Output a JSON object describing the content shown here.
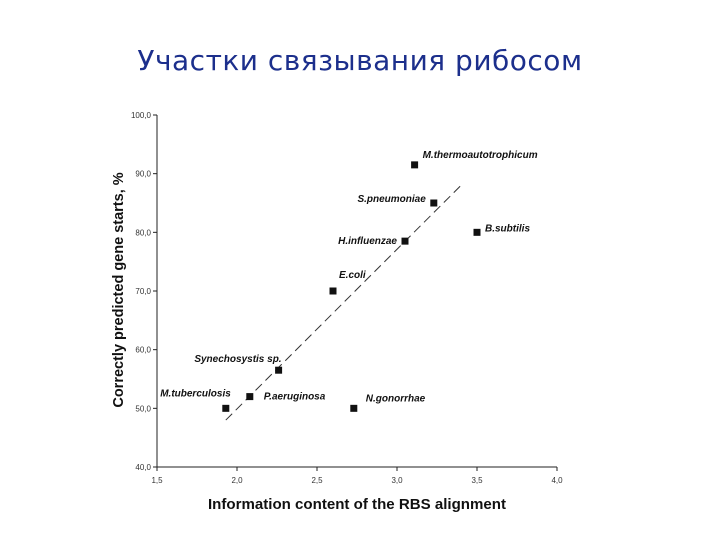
{
  "slide": {
    "title": "Участки связывания рибосом"
  },
  "chart_data": {
    "type": "scatter",
    "title": "",
    "xlabel": "Information content of the RBS alignment",
    "ylabel": "Correctly predicted gene starts, %",
    "xlim": [
      1.5,
      4.0
    ],
    "ylim": [
      40.0,
      100.0
    ],
    "xticks": [
      "1,5",
      "2,0",
      "2,5",
      "3,0",
      "3,5",
      "4,0"
    ],
    "yticks": [
      "40,0",
      "50,0",
      "60,0",
      "70,0",
      "80,0",
      "90,0",
      "100,0"
    ],
    "grid": false,
    "points": [
      {
        "label": "M.thermoautotrophicum",
        "x": 3.11,
        "y": 91.5
      },
      {
        "label": "S.pneumoniae",
        "x": 3.23,
        "y": 85.0
      },
      {
        "label": "B.subtilis",
        "x": 3.5,
        "y": 80.0
      },
      {
        "label": "H.influenzae",
        "x": 3.05,
        "y": 78.5
      },
      {
        "label": "E.coli",
        "x": 2.6,
        "y": 70.0
      },
      {
        "label": "Synechosystis sp.",
        "x": 2.26,
        "y": 56.5
      },
      {
        "label": "M.tuberculosis",
        "x": 1.93,
        "y": 50.0
      },
      {
        "label": "P.aeruginosa",
        "x": 2.08,
        "y": 52.0
      },
      {
        "label": "N.gonorrhae",
        "x": 2.73,
        "y": 50.0
      }
    ],
    "trendline": {
      "style": "dashed",
      "x": [
        1.93,
        3.4
      ],
      "y": [
        48.0,
        88.0
      ]
    }
  }
}
